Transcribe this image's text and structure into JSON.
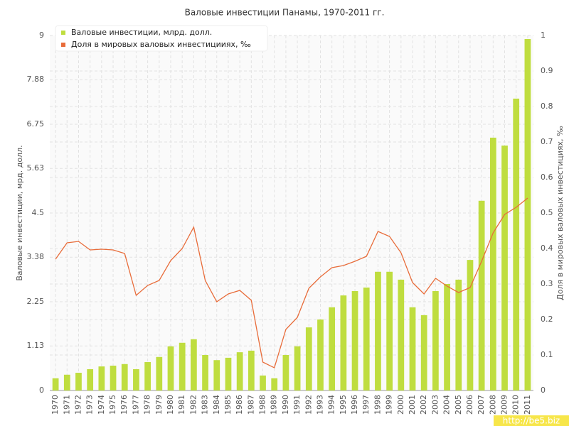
{
  "chart_data": {
    "type": "bar",
    "title": "Валовые инвестиции Панамы, 1970-2011 гг.",
    "y_label": "Валовые инвестиции, мрд. долл.",
    "y2_label": "Доля в мировых валовых инвестициях, ‰",
    "watermark": "http://be5.biz",
    "grid": true,
    "legend": "top-left",
    "categories": [
      "1970",
      "1971",
      "1972",
      "1973",
      "1974",
      "1975",
      "1976",
      "1977",
      "1978",
      "1979",
      "1980",
      "1981",
      "1982",
      "1983",
      "1984",
      "1985",
      "1986",
      "1987",
      "1988",
      "1989",
      "1990",
      "1991",
      "1992",
      "1993",
      "1994",
      "1995",
      "1996",
      "1997",
      "1998",
      "1999",
      "2000",
      "2001",
      "2002",
      "2003",
      "2004",
      "2005",
      "2006",
      "2007",
      "2008",
      "2009",
      "2010",
      "2011"
    ],
    "ylim": [
      0,
      9
    ],
    "yticks": [
      0,
      1.13,
      2.25,
      3.38,
      4.5,
      5.63,
      6.75,
      7.88,
      9
    ],
    "y2lim": [
      0,
      1
    ],
    "y2ticks": [
      0,
      0.1,
      0.2,
      0.3,
      0.4,
      0.5,
      0.6,
      0.7,
      0.8,
      0.9,
      1
    ],
    "series": [
      {
        "name": "Валовые инвестиции, млрд. долл.",
        "color": "#bfdd3f",
        "type": "bar",
        "values": [
          0.31,
          0.4,
          0.45,
          0.54,
          0.61,
          0.63,
          0.67,
          0.54,
          0.72,
          0.85,
          1.12,
          1.21,
          1.3,
          0.9,
          0.77,
          0.83,
          0.97,
          1.01,
          0.38,
          0.31,
          0.9,
          1.12,
          1.6,
          1.8,
          2.11,
          2.41,
          2.52,
          2.61,
          3.01,
          3.01,
          2.81,
          2.11,
          1.91,
          2.52,
          2.7,
          2.81,
          3.31,
          4.81,
          6.41,
          6.21,
          7.4,
          8.91
        ]
      },
      {
        "name": "Доля в мировых валовых инвестицииях, ‰",
        "color": "#e86c3a",
        "type": "line",
        "axis": "y2",
        "values": [
          0.37,
          0.416,
          0.42,
          0.396,
          0.398,
          0.396,
          0.386,
          0.268,
          0.296,
          0.31,
          0.366,
          0.4,
          0.46,
          0.31,
          0.25,
          0.272,
          0.282,
          0.254,
          0.08,
          0.064,
          0.172,
          0.206,
          0.288,
          0.32,
          0.346,
          0.352,
          0.364,
          0.378,
          0.448,
          0.434,
          0.388,
          0.304,
          0.272,
          0.316,
          0.294,
          0.276,
          0.29,
          0.364,
          0.444,
          0.496,
          0.516,
          0.542
        ]
      }
    ]
  }
}
